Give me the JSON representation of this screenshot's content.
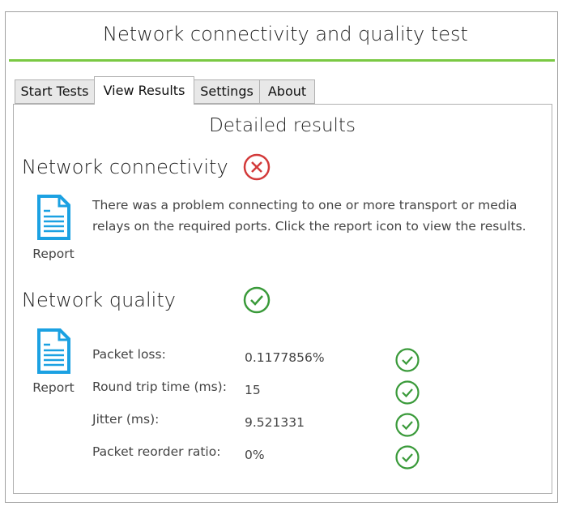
{
  "window": {
    "title": "Network connectivity and quality test"
  },
  "tabs": [
    {
      "label": "Start Tests"
    },
    {
      "label": "View Results"
    },
    {
      "label": "Settings"
    },
    {
      "label": "About"
    }
  ],
  "active_tab": "View Results",
  "main": {
    "heading": "Detailed results",
    "connectivity": {
      "title": "Network connectivity",
      "status": "fail",
      "status_icon": "error-circle-x-icon",
      "report_label": "Report",
      "message": "There was a problem connecting to one or more transport or media relays on the required ports. Click the report icon to view the results."
    },
    "quality": {
      "title": "Network quality",
      "status": "pass",
      "status_icon": "check-circle-icon",
      "report_label": "Report",
      "metrics": [
        {
          "label": "Packet loss:",
          "value": "0.1177856%",
          "status": "pass"
        },
        {
          "label": "Round trip time (ms):",
          "value": "15",
          "status": "pass"
        },
        {
          "label": "Jitter (ms):",
          "value": "9.521331",
          "status": "pass"
        },
        {
          "label": "Packet reorder ratio:",
          "value": "0%",
          "status": "pass"
        }
      ]
    }
  },
  "colors": {
    "accent_green": "#7ac943",
    "error_red": "#d33a3a",
    "ok_green": "#3a9a3a",
    "report_blue": "#1ba1e2"
  }
}
